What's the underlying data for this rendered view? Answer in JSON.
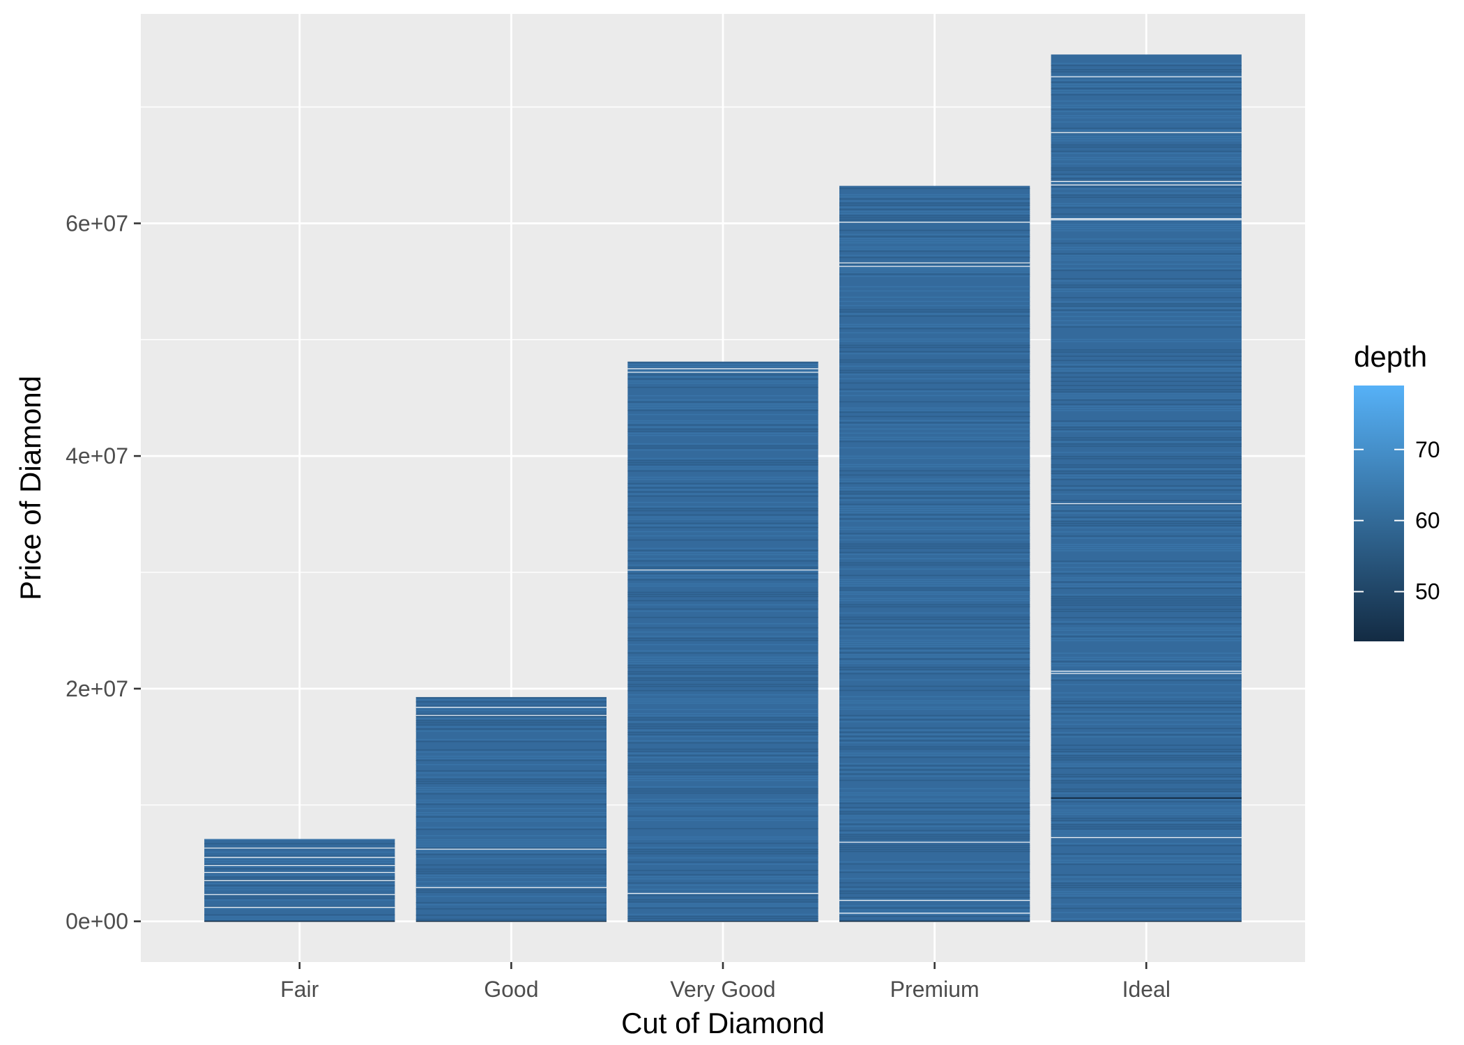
{
  "chart_data": {
    "type": "bar",
    "stacked": true,
    "categories": [
      "Fair",
      "Good",
      "Very Good",
      "Premium",
      "Ideal"
    ],
    "values": [
      7076000,
      19275000,
      48107000,
      63222000,
      74513000
    ],
    "xlabel": "Cut of Diamond",
    "ylabel": "Price of Diamond",
    "ylim": [
      -3500000,
      78000000
    ],
    "y_ticks": [
      {
        "value": 0,
        "label": "0e+00"
      },
      {
        "value": 20000000,
        "label": "2e+07"
      },
      {
        "value": 40000000,
        "label": "4e+07"
      },
      {
        "value": 60000000,
        "label": "6e+07"
      }
    ],
    "y_minor_ticks": [
      10000000,
      30000000,
      50000000,
      70000000
    ],
    "grid": true,
    "fill_by": "depth",
    "separators": [
      [
        1200000,
        2300000,
        3500000,
        4200000,
        4800000,
        5500000,
        6300000
      ],
      [
        2900000,
        6200000,
        17700000,
        18400000
      ],
      [
        2400000,
        30200000,
        47200000,
        47500000
      ],
      [
        700000,
        1800000,
        6800000,
        56300000,
        56600000,
        60100000
      ],
      [
        7200000,
        21300000,
        21500000,
        35900000,
        60300000,
        60400000,
        63300000,
        63600000,
        67800000,
        72600000
      ]
    ],
    "dark_lines": [
      [],
      [],
      [],
      [],
      [
        10600000
      ]
    ],
    "legend": {
      "title": "depth",
      "position": "right",
      "range": [
        43,
        79
      ],
      "ticks": [
        {
          "value": 50,
          "label": "50"
        },
        {
          "value": 60,
          "label": "60"
        },
        {
          "value": 70,
          "label": "70"
        }
      ],
      "colors": [
        "#132B43",
        "#56B1F7"
      ]
    },
    "colors": {
      "panel": "#EBEBEB",
      "grid": "#FFFFFF",
      "bar": "#346A9C",
      "bar_light": "#3B76AA",
      "bar_dark": "#2D5C88"
    }
  }
}
